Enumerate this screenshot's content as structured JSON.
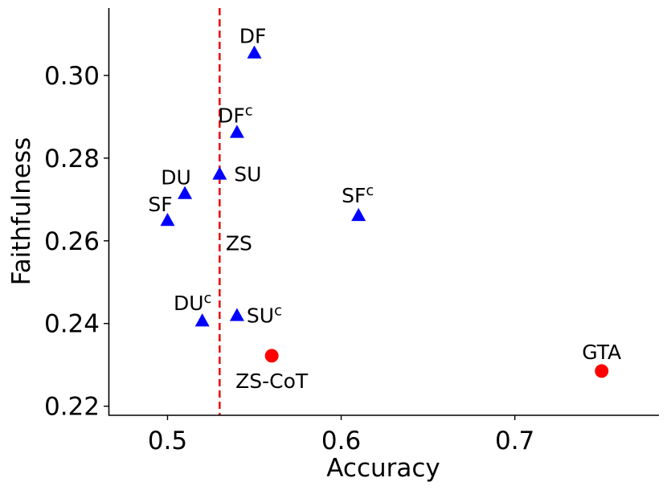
{
  "chart_data": {
    "type": "scatter",
    "title": "",
    "xlabel": "Accuracy",
    "ylabel": "Faithfulness",
    "xlim": [
      0.466,
      0.783
    ],
    "ylim": [
      0.2178,
      0.3163
    ],
    "xticks": [
      0.5,
      0.6,
      0.7
    ],
    "yticks": [
      0.22,
      0.24,
      0.26,
      0.28,
      0.3
    ],
    "xtick_labels": [
      "0.5",
      "0.6",
      "0.7"
    ],
    "ytick_labels": [
      "0.22",
      "0.24",
      "0.26",
      "0.28",
      "0.30"
    ],
    "grid": false,
    "reference_line": {
      "axis": "x",
      "value": 0.53,
      "color": "#ee1111",
      "style": "dashed"
    },
    "series": [
      {
        "marker": "triangle",
        "color": "#0000ff",
        "points": [
          {
            "label": "DF",
            "sup": "",
            "x": 0.55,
            "y": 0.3055
          },
          {
            "label": "DF",
            "sup": "c",
            "x": 0.54,
            "y": 0.2863
          },
          {
            "label": "SU",
            "sup": "",
            "x": 0.53,
            "y": 0.2762
          },
          {
            "label": "DU",
            "sup": "",
            "x": 0.51,
            "y": 0.2715
          },
          {
            "label": "SF",
            "sup": "",
            "x": 0.5,
            "y": 0.265
          },
          {
            "label": "SF",
            "sup": "c",
            "x": 0.61,
            "y": 0.2662
          },
          {
            "label": "DU",
            "sup": "c",
            "x": 0.52,
            "y": 0.2407
          },
          {
            "label": "SU",
            "sup": "c",
            "x": 0.54,
            "y": 0.242
          }
        ]
      },
      {
        "marker": "circle",
        "color": "#ff0000",
        "points": [
          {
            "label": "ZS-CoT",
            "sup": "",
            "x": 0.56,
            "y": 0.2322
          },
          {
            "label": "GTA",
            "sup": "",
            "x": 0.75,
            "y": 0.2285
          }
        ]
      }
    ],
    "annotations": [
      {
        "text": "ZS",
        "x": 0.5335,
        "y": 0.2595
      }
    ]
  }
}
